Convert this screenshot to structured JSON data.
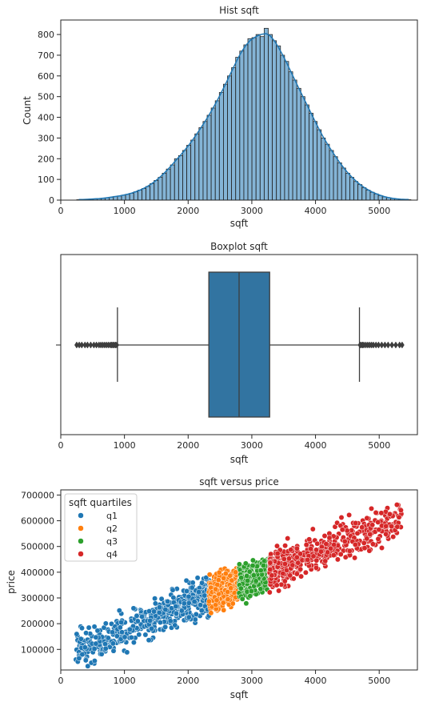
{
  "chart_data": [
    {
      "type": "bar",
      "title": "Hist sqft",
      "xlabel": "sqft",
      "ylabel": "Count",
      "xlim": [
        0,
        5600
      ],
      "ylim": [
        0,
        870
      ],
      "x_ticks": [
        0,
        1000,
        2000,
        3000,
        4000,
        5000
      ],
      "y_ticks": [
        0,
        100,
        200,
        300,
        400,
        500,
        600,
        700,
        800
      ],
      "bin_start": 250,
      "bin_width": 64,
      "counts": [
        2,
        3,
        4,
        5,
        6,
        7,
        9,
        11,
        14,
        18,
        20,
        24,
        28,
        33,
        40,
        48,
        56,
        66,
        80,
        95,
        110,
        130,
        150,
        170,
        200,
        215,
        240,
        265,
        290,
        320,
        350,
        380,
        410,
        445,
        480,
        520,
        560,
        600,
        640,
        690,
        720,
        750,
        780,
        785,
        800,
        790,
        830,
        800,
        770,
        745,
        700,
        670,
        620,
        580,
        540,
        500,
        460,
        420,
        380,
        340,
        300,
        270,
        240,
        210,
        180,
        155,
        130,
        110,
        90,
        75,
        60,
        48,
        38,
        30,
        22,
        16,
        12,
        8,
        6,
        4,
        3,
        2
      ]
    },
    {
      "type": "box",
      "title": "Boxplot sqft",
      "xlabel": "sqft",
      "xlim": [
        0,
        5600
      ],
      "x_ticks": [
        0,
        1000,
        2000,
        3000,
        4000,
        5000
      ],
      "q1": 2325,
      "median": 2800,
      "q3": 3280,
      "whisker_low": 890,
      "whisker_high": 4690,
      "outliers_low": [
        250,
        290,
        330,
        380,
        420,
        470,
        520,
        560,
        600,
        630,
        660,
        690,
        720,
        750,
        780,
        800,
        820,
        840,
        860,
        880
      ],
      "outliers_high": [
        4700,
        4720,
        4740,
        4760,
        4790,
        4820,
        4850,
        4880,
        4910,
        4950,
        4990,
        5040,
        5090,
        5140,
        5200,
        5260,
        5320,
        5360
      ]
    },
    {
      "type": "scatter",
      "title": "sqft versus price",
      "xlabel": "sqft",
      "ylabel": "price",
      "xlim": [
        0,
        5600
      ],
      "ylim": [
        20000,
        720000
      ],
      "x_ticks": [
        0,
        1000,
        2000,
        3000,
        4000,
        5000
      ],
      "y_ticks": [
        100000,
        200000,
        300000,
        400000,
        500000,
        600000,
        700000
      ],
      "legend_title": "sqft quartiles",
      "legend_placement": "upper-left",
      "series": [
        {
          "name": "q1",
          "color": "#1f77b4",
          "x_range": [
            230,
            2325
          ],
          "slope": 100,
          "intercept": 75000,
          "spread": 65000,
          "n": 520
        },
        {
          "name": "q2",
          "color": "#ff7f0e",
          "x_range": [
            2325,
            2800
          ],
          "slope": 100,
          "intercept": 75000,
          "spread": 60000,
          "n": 320
        },
        {
          "name": "q3",
          "color": "#2ca02c",
          "x_range": [
            2800,
            3280
          ],
          "slope": 100,
          "intercept": 75000,
          "spread": 60000,
          "n": 320
        },
        {
          "name": "q4",
          "color": "#d62728",
          "x_range": [
            3280,
            5350
          ],
          "slope": 100,
          "intercept": 75000,
          "spread": 62000,
          "n": 520
        }
      ]
    }
  ]
}
